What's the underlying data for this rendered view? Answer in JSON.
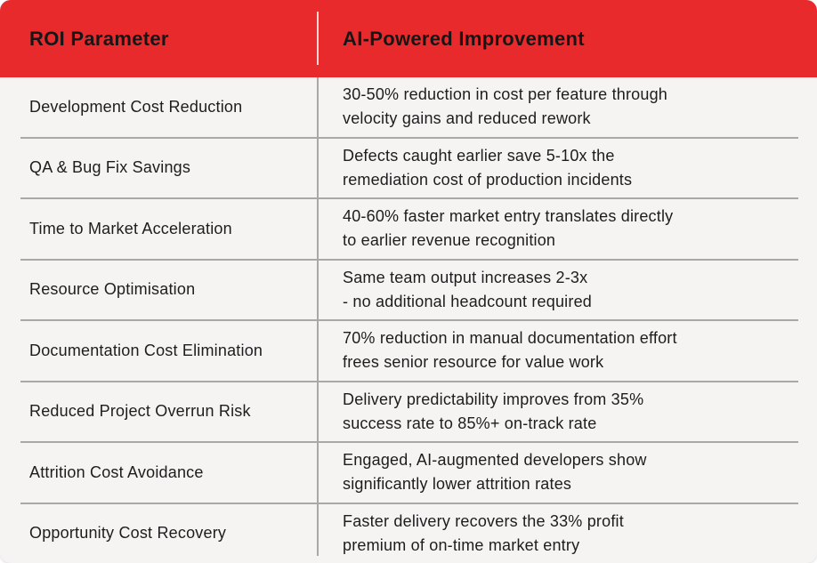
{
  "colors": {
    "header_bg": "#E92A2D",
    "header_text": "#161616",
    "body_bg": "#F5F4F2",
    "body_text": "#1D1D1D",
    "separator": "#A8A8A8",
    "header_divider": "#F3D2D0",
    "page_bg": "#FFFFFF"
  },
  "table": {
    "header": {
      "col1": "ROI Parameter",
      "col2": "AI-Powered Improvement"
    },
    "rows": [
      {
        "param": "Development Cost Reduction",
        "improvement_lines": [
          "30-50% reduction in cost per feature through",
          "velocity gains and reduced rework"
        ]
      },
      {
        "param": "QA & Bug Fix Savings",
        "improvement_lines": [
          "Defects caught earlier save 5-10x the",
          "remediation cost of production incidents"
        ]
      },
      {
        "param": "Time to Market Acceleration",
        "improvement_lines": [
          "40-60% faster market entry translates directly",
          "to earlier revenue recognition"
        ]
      },
      {
        "param": "Resource Optimisation",
        "improvement_lines": [
          "Same team output increases 2-3x",
          "- no additional headcount required"
        ]
      },
      {
        "param": "Documentation Cost Elimination",
        "improvement_lines": [
          "70% reduction in manual documentation effort",
          "frees senior resource for value work"
        ]
      },
      {
        "param": "Reduced Project Overrun Risk",
        "improvement_lines": [
          "Delivery predictability improves from 35%",
          "success rate to 85%+ on-track rate"
        ]
      },
      {
        "param": "Attrition Cost Avoidance",
        "improvement_lines": [
          "Engaged, AI-augmented developers show",
          "significantly lower attrition rates"
        ]
      },
      {
        "param": "Opportunity Cost Recovery",
        "improvement_lines": [
          "Faster delivery recovers the 33% profit",
          "premium of on-time market entry"
        ]
      }
    ]
  }
}
